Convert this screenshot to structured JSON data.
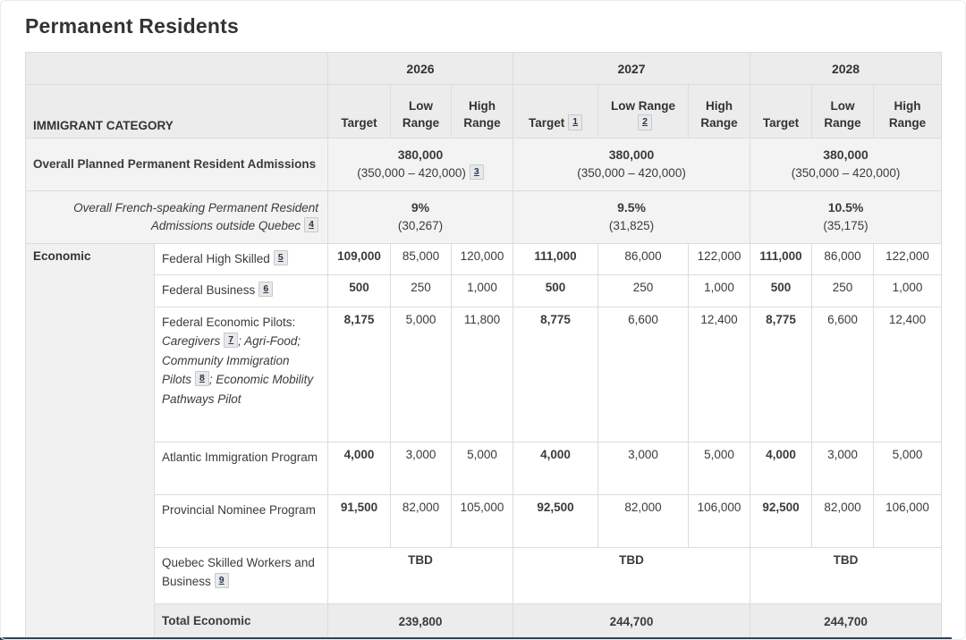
{
  "page": {
    "title": "Permanent Residents"
  },
  "theme": {
    "header_bg": "#ececec",
    "row_alt_bg": "#f3f3f3",
    "group_bg": "#f1f1f1",
    "border": "#dcdcdc",
    "link": "#26374a",
    "bottom_bar": "#2e4258"
  },
  "table": {
    "category_header": "IMMIGRANT CATEGORY",
    "years": [
      {
        "label": "2026",
        "columns": [
          {
            "label": "Target"
          },
          {
            "label": "Low Range"
          },
          {
            "label": "High Range"
          }
        ]
      },
      {
        "label": "2027",
        "columns": [
          {
            "label": "Target",
            "footnote": "1"
          },
          {
            "label": "Low Range",
            "footnote": "2"
          },
          {
            "label": "High Range"
          }
        ]
      },
      {
        "label": "2028",
        "columns": [
          {
            "label": "Target"
          },
          {
            "label": "Low Range"
          },
          {
            "label": "High Range"
          }
        ]
      }
    ],
    "summary_rows": [
      {
        "id": "overall-planned-admissions",
        "label_align": "left",
        "label": [
          {
            "text": "Overall Planned Permanent Resident Admissions",
            "bold": true
          }
        ],
        "year_cells": [
          {
            "main": "380,000",
            "sub": "(350,000 – 420,000)",
            "footnote": "3"
          },
          {
            "main": "380,000",
            "sub": "(350,000 – 420,000)"
          },
          {
            "main": "380,000",
            "sub": "(350,000 – 420,000)"
          }
        ]
      },
      {
        "id": "french-speaking-admissions",
        "label_align": "right",
        "label": [
          {
            "text": "Overall French-speaking Permanent Resident Admissions outside Quebec",
            "italic": true,
            "footnote": "4"
          }
        ],
        "year_cells": [
          {
            "main": "9%",
            "sub": "(30,267)"
          },
          {
            "main": "9.5%",
            "sub": "(31,825)"
          },
          {
            "main": "10.5%",
            "sub": "(35,175)"
          }
        ]
      }
    ],
    "groups": [
      {
        "label": "Economic",
        "rows": [
          {
            "id": "federal-high-skilled",
            "label": [
              {
                "text": "Federal High Skilled",
                "footnote": "5"
              }
            ],
            "values": [
              "109,000",
              "85,000",
              "120,000",
              "111,000",
              "86,000",
              "122,000",
              "111,000",
              "86,000",
              "122,000"
            ]
          },
          {
            "id": "federal-business",
            "label": [
              {
                "text": "Federal Business",
                "footnote": "6"
              }
            ],
            "values": [
              "500",
              "250",
              "1,000",
              "500",
              "250",
              "1,000",
              "500",
              "250",
              "1,000"
            ]
          },
          {
            "id": "federal-economic-pilots",
            "label": [
              {
                "text": "Federal Economic Pilots: "
              },
              {
                "text": "Caregivers",
                "italic": true,
                "footnote": "7"
              },
              {
                "text": "; Agri-Food; Community Immigration Pilots",
                "italic": true,
                "footnote": "8"
              },
              {
                "text": "; Economic Mobility Pathways Pilot",
                "italic": true
              }
            ],
            "values": [
              "8,175",
              "5,000",
              "11,800",
              "8,775",
              "6,600",
              "12,400",
              "8,775",
              "6,600",
              "12,400"
            ]
          },
          {
            "id": "atlantic-immigration-program",
            "label": [
              {
                "text": "Atlantic Immigration Program"
              }
            ],
            "values": [
              "4,000",
              "3,000",
              "5,000",
              "4,000",
              "3,000",
              "5,000",
              "4,000",
              "3,000",
              "5,000"
            ]
          },
          {
            "id": "provincial-nominee-program",
            "label": [
              {
                "text": "Provincial Nominee Program"
              }
            ],
            "values": [
              "91,500",
              "82,000",
              "105,000",
              "92,500",
              "82,000",
              "106,000",
              "92,500",
              "82,000",
              "106,000"
            ]
          },
          {
            "id": "quebec-skilled-workers-and-business",
            "label": [
              {
                "text": "Quebec Skilled Workers and Business",
                "footnote": "9"
              }
            ],
            "merged_values": [
              "TBD",
              "TBD",
              "TBD"
            ]
          },
          {
            "id": "total-economic",
            "label": [
              {
                "text": "Total Economic",
                "bold": true
              }
            ],
            "merged_values": [
              "239,800",
              "244,700",
              "244,700"
            ],
            "is_total": true
          }
        ]
      }
    ]
  }
}
